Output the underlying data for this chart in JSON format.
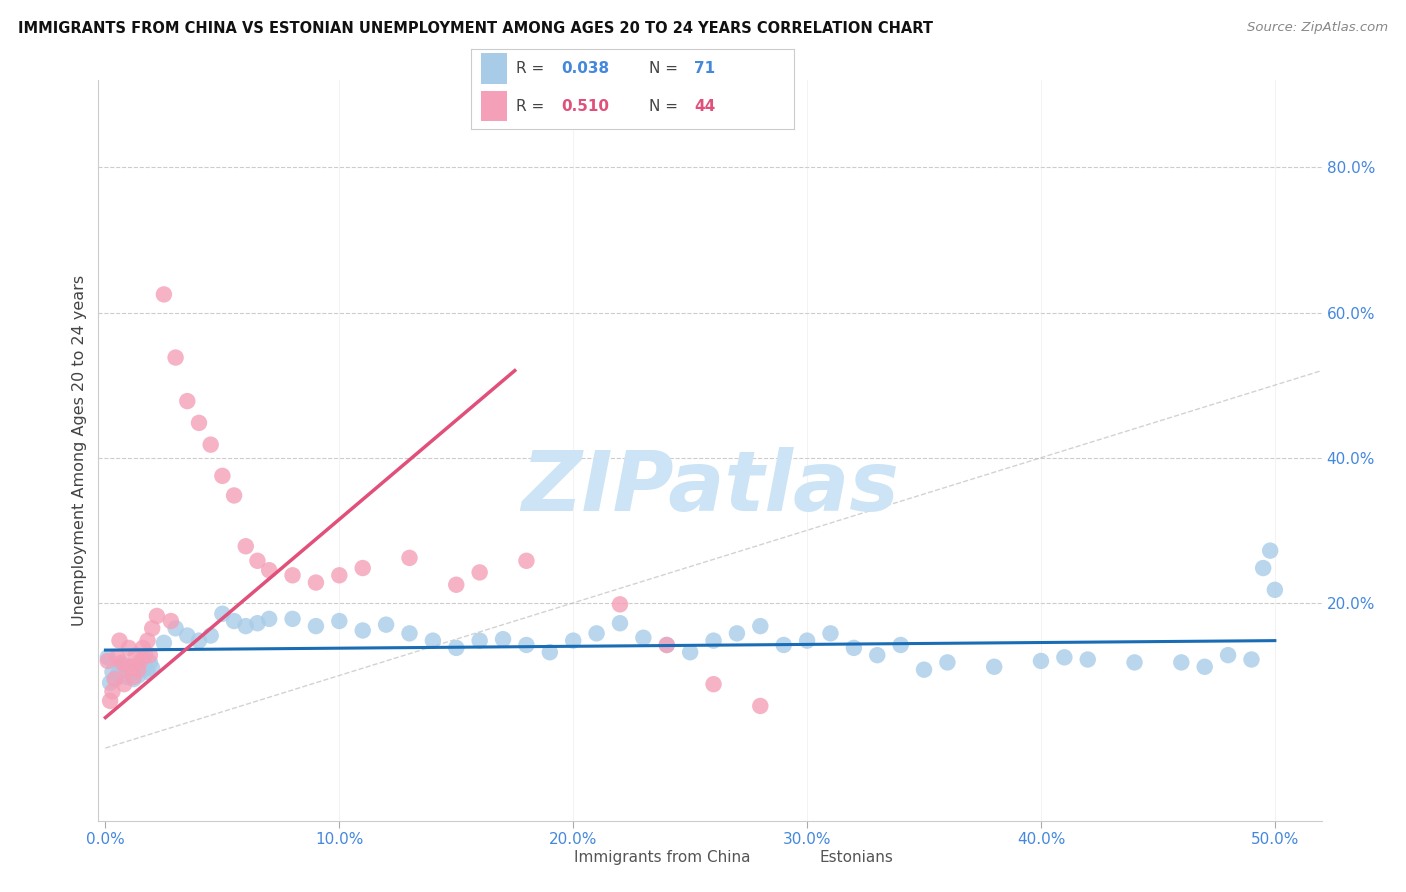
{
  "title": "IMMIGRANTS FROM CHINA VS ESTONIAN UNEMPLOYMENT AMONG AGES 20 TO 24 YEARS CORRELATION CHART",
  "source": "Source: ZipAtlas.com",
  "ylabel": "Unemployment Among Ages 20 to 24 years",
  "xlim": [
    -0.003,
    0.52
  ],
  "ylim": [
    -0.1,
    0.92
  ],
  "xticks": [
    0.0,
    0.1,
    0.2,
    0.3,
    0.4,
    0.5
  ],
  "yticks": [
    0.2,
    0.4,
    0.6,
    0.8
  ],
  "xticklabels": [
    "0.0%",
    "10.0%",
    "20.0%",
    "30.0%",
    "40.0%",
    "50.0%"
  ],
  "yticklabels": [
    "20.0%",
    "40.0%",
    "60.0%",
    "80.0%"
  ],
  "color_blue": "#a8cce8",
  "color_pink": "#f4a0b8",
  "color_blue_line": "#1a6db5",
  "color_pink_line": "#e0507a",
  "color_diag": "#c0c0c0",
  "color_tick": "#4488dd",
  "watermark_color": "#cce4f5",
  "legend_r1": "0.038",
  "legend_n1": "71",
  "legend_r2": "0.510",
  "legend_n2": "44",
  "legend_label1": "Immigrants from China",
  "legend_label2": "Estonians",
  "blue_x": [
    0.001,
    0.002,
    0.003,
    0.004,
    0.005,
    0.006,
    0.007,
    0.008,
    0.009,
    0.01,
    0.011,
    0.012,
    0.013,
    0.014,
    0.015,
    0.016,
    0.017,
    0.018,
    0.019,
    0.02,
    0.025,
    0.03,
    0.035,
    0.04,
    0.045,
    0.05,
    0.055,
    0.06,
    0.065,
    0.07,
    0.08,
    0.09,
    0.1,
    0.11,
    0.12,
    0.13,
    0.14,
    0.15,
    0.16,
    0.17,
    0.18,
    0.19,
    0.2,
    0.21,
    0.22,
    0.23,
    0.24,
    0.25,
    0.26,
    0.27,
    0.28,
    0.29,
    0.3,
    0.31,
    0.32,
    0.33,
    0.34,
    0.36,
    0.38,
    0.4,
    0.42,
    0.44,
    0.46,
    0.47,
    0.48,
    0.49,
    0.495,
    0.498,
    0.5,
    0.41,
    0.35
  ],
  "blue_y": [
    0.125,
    0.09,
    0.105,
    0.095,
    0.1,
    0.11,
    0.115,
    0.108,
    0.098,
    0.105,
    0.112,
    0.095,
    0.105,
    0.1,
    0.115,
    0.108,
    0.112,
    0.105,
    0.118,
    0.11,
    0.145,
    0.165,
    0.155,
    0.148,
    0.155,
    0.185,
    0.175,
    0.168,
    0.172,
    0.178,
    0.178,
    0.168,
    0.175,
    0.162,
    0.17,
    0.158,
    0.148,
    0.138,
    0.148,
    0.15,
    0.142,
    0.132,
    0.148,
    0.158,
    0.172,
    0.152,
    0.142,
    0.132,
    0.148,
    0.158,
    0.168,
    0.142,
    0.148,
    0.158,
    0.138,
    0.128,
    0.142,
    0.118,
    0.112,
    0.12,
    0.122,
    0.118,
    0.118,
    0.112,
    0.128,
    0.122,
    0.248,
    0.272,
    0.218,
    0.125,
    0.108
  ],
  "pink_x": [
    0.001,
    0.002,
    0.003,
    0.004,
    0.005,
    0.006,
    0.007,
    0.008,
    0.009,
    0.01,
    0.011,
    0.012,
    0.013,
    0.014,
    0.015,
    0.016,
    0.017,
    0.018,
    0.019,
    0.02,
    0.022,
    0.025,
    0.028,
    0.03,
    0.035,
    0.04,
    0.045,
    0.05,
    0.055,
    0.06,
    0.065,
    0.07,
    0.08,
    0.09,
    0.1,
    0.11,
    0.13,
    0.15,
    0.16,
    0.18,
    0.22,
    0.24,
    0.26,
    0.28
  ],
  "pink_y": [
    0.12,
    0.065,
    0.078,
    0.095,
    0.125,
    0.148,
    0.118,
    0.088,
    0.108,
    0.138,
    0.112,
    0.098,
    0.128,
    0.108,
    0.12,
    0.138,
    0.128,
    0.148,
    0.128,
    0.165,
    0.182,
    0.625,
    0.175,
    0.538,
    0.478,
    0.448,
    0.418,
    0.375,
    0.348,
    0.278,
    0.258,
    0.245,
    0.238,
    0.228,
    0.238,
    0.248,
    0.262,
    0.225,
    0.242,
    0.258,
    0.198,
    0.142,
    0.088,
    0.058
  ],
  "blue_trend_x": [
    0.0,
    0.5
  ],
  "blue_trend_y": [
    0.135,
    0.148
  ],
  "pink_trend_x": [
    0.0,
    0.175
  ],
  "pink_trend_y": [
    0.042,
    0.52
  ]
}
